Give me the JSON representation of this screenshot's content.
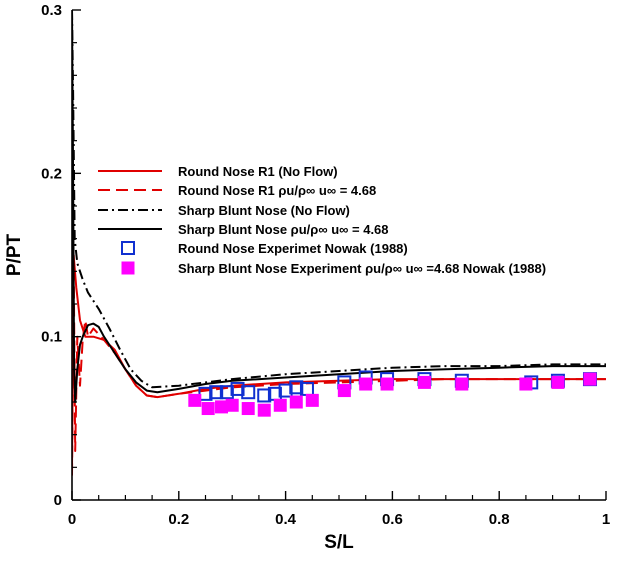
{
  "chart_data": {
    "type": "line",
    "title": "",
    "xlabel": "S/L",
    "ylabel": "P/PT",
    "xlim": [
      0,
      1
    ],
    "ylim": [
      0,
      0.3
    ],
    "xticks": [
      0,
      0.2,
      0.4,
      0.6,
      0.8,
      1
    ],
    "xtick_labels": [
      "0",
      "0.2",
      "0.4",
      "0.6",
      "0.8",
      "1"
    ],
    "yticks": [
      0,
      0.1,
      0.2,
      0.3
    ],
    "ytick_labels": [
      "0",
      "0.1",
      "0.2",
      "0.3"
    ],
    "grid": false,
    "legend_position": "center-left",
    "series": [
      {
        "name": "Round Nose R1 (No Flow)",
        "kind": "line",
        "color": "#e00000",
        "dash": "solid",
        "x": [
          0,
          0.003,
          0.008,
          0.015,
          0.025,
          0.04,
          0.06,
          0.08,
          0.1,
          0.12,
          0.14,
          0.16,
          0.2,
          0.25,
          0.3,
          0.4,
          0.5,
          0.6,
          0.7,
          0.8,
          0.9,
          1.0
        ],
        "y": [
          0.02,
          0.15,
          0.13,
          0.11,
          0.1,
          0.1,
          0.098,
          0.092,
          0.08,
          0.07,
          0.064,
          0.063,
          0.065,
          0.068,
          0.07,
          0.072,
          0.073,
          0.074,
          0.074,
          0.074,
          0.074,
          0.074
        ]
      },
      {
        "name": "Round Nose R1 ρu/ρ∞ u∞ = 4.68",
        "kind": "line",
        "color": "#e00000",
        "dash": "dashed",
        "x": [
          0,
          0.003,
          0.006,
          0.01,
          0.015,
          0.02,
          0.025,
          0.03,
          0.04,
          0.06,
          0.08,
          0.1,
          0.12,
          0.14,
          0.16,
          0.2,
          0.25,
          0.3,
          0.4,
          0.5,
          0.6,
          0.7,
          0.8,
          0.9,
          1.0
        ],
        "y": [
          0.015,
          0.15,
          0.03,
          0.1,
          0.07,
          0.098,
          0.11,
          0.1,
          0.105,
          0.098,
          0.09,
          0.08,
          0.07,
          0.064,
          0.063,
          0.065,
          0.067,
          0.069,
          0.071,
          0.072,
          0.073,
          0.074,
          0.074,
          0.074,
          0.074
        ]
      },
      {
        "name": "Sharp Blunt Nose (No Flow)",
        "kind": "line",
        "color": "#000000",
        "dash": "dashdot",
        "x": [
          0,
          0.002,
          0.005,
          0.01,
          0.02,
          0.03,
          0.05,
          0.07,
          0.09,
          0.11,
          0.13,
          0.15,
          0.2,
          0.3,
          0.4,
          0.5,
          0.6,
          0.7,
          0.8,
          0.9,
          1.0
        ],
        "y": [
          0.3,
          0.25,
          0.16,
          0.145,
          0.135,
          0.127,
          0.117,
          0.105,
          0.092,
          0.08,
          0.073,
          0.069,
          0.07,
          0.074,
          0.077,
          0.079,
          0.081,
          0.082,
          0.082,
          0.083,
          0.083
        ]
      },
      {
        "name": "Sharp Blunt Nose ρu/ρ∞ u∞ = 4.68",
        "kind": "line",
        "color": "#000000",
        "dash": "solid",
        "x": [
          0,
          0.002,
          0.004,
          0.006,
          0.01,
          0.015,
          0.02,
          0.03,
          0.04,
          0.05,
          0.06,
          0.08,
          0.1,
          0.12,
          0.14,
          0.16,
          0.2,
          0.25,
          0.3,
          0.4,
          0.5,
          0.6,
          0.7,
          0.8,
          0.9,
          1.0
        ],
        "y": [
          0.3,
          0.2,
          0.08,
          0.06,
          0.08,
          0.095,
          0.1,
          0.107,
          0.108,
          0.106,
          0.1,
          0.09,
          0.08,
          0.072,
          0.067,
          0.066,
          0.068,
          0.071,
          0.073,
          0.075,
          0.077,
          0.079,
          0.08,
          0.081,
          0.082,
          0.082
        ]
      },
      {
        "name": "Round Nose Experimet Nowak (1988)",
        "kind": "scatter",
        "marker": "open-square",
        "color": "#1030d0",
        "x": [
          0.25,
          0.27,
          0.29,
          0.31,
          0.33,
          0.36,
          0.38,
          0.4,
          0.42,
          0.44,
          0.51,
          0.55,
          0.59,
          0.66,
          0.73,
          0.86,
          0.91,
          0.97
        ],
        "y": [
          0.065,
          0.066,
          0.066,
          0.068,
          0.066,
          0.064,
          0.065,
          0.067,
          0.069,
          0.068,
          0.072,
          0.075,
          0.074,
          0.074,
          0.073,
          0.072,
          0.073,
          0.074
        ]
      },
      {
        "name": "Sharp Blunt Nose Experiment ρu/ρ∞ u∞ =4.68 Nowak (1988)",
        "kind": "scatter",
        "marker": "filled-square",
        "color": "#ff00ff",
        "x": [
          0.23,
          0.255,
          0.28,
          0.3,
          0.33,
          0.36,
          0.39,
          0.42,
          0.45,
          0.51,
          0.55,
          0.59,
          0.66,
          0.73,
          0.85,
          0.91,
          0.97
        ],
        "y": [
          0.061,
          0.056,
          0.057,
          0.058,
          0.056,
          0.055,
          0.058,
          0.06,
          0.061,
          0.067,
          0.071,
          0.071,
          0.072,
          0.071,
          0.071,
          0.072,
          0.074
        ]
      }
    ]
  }
}
